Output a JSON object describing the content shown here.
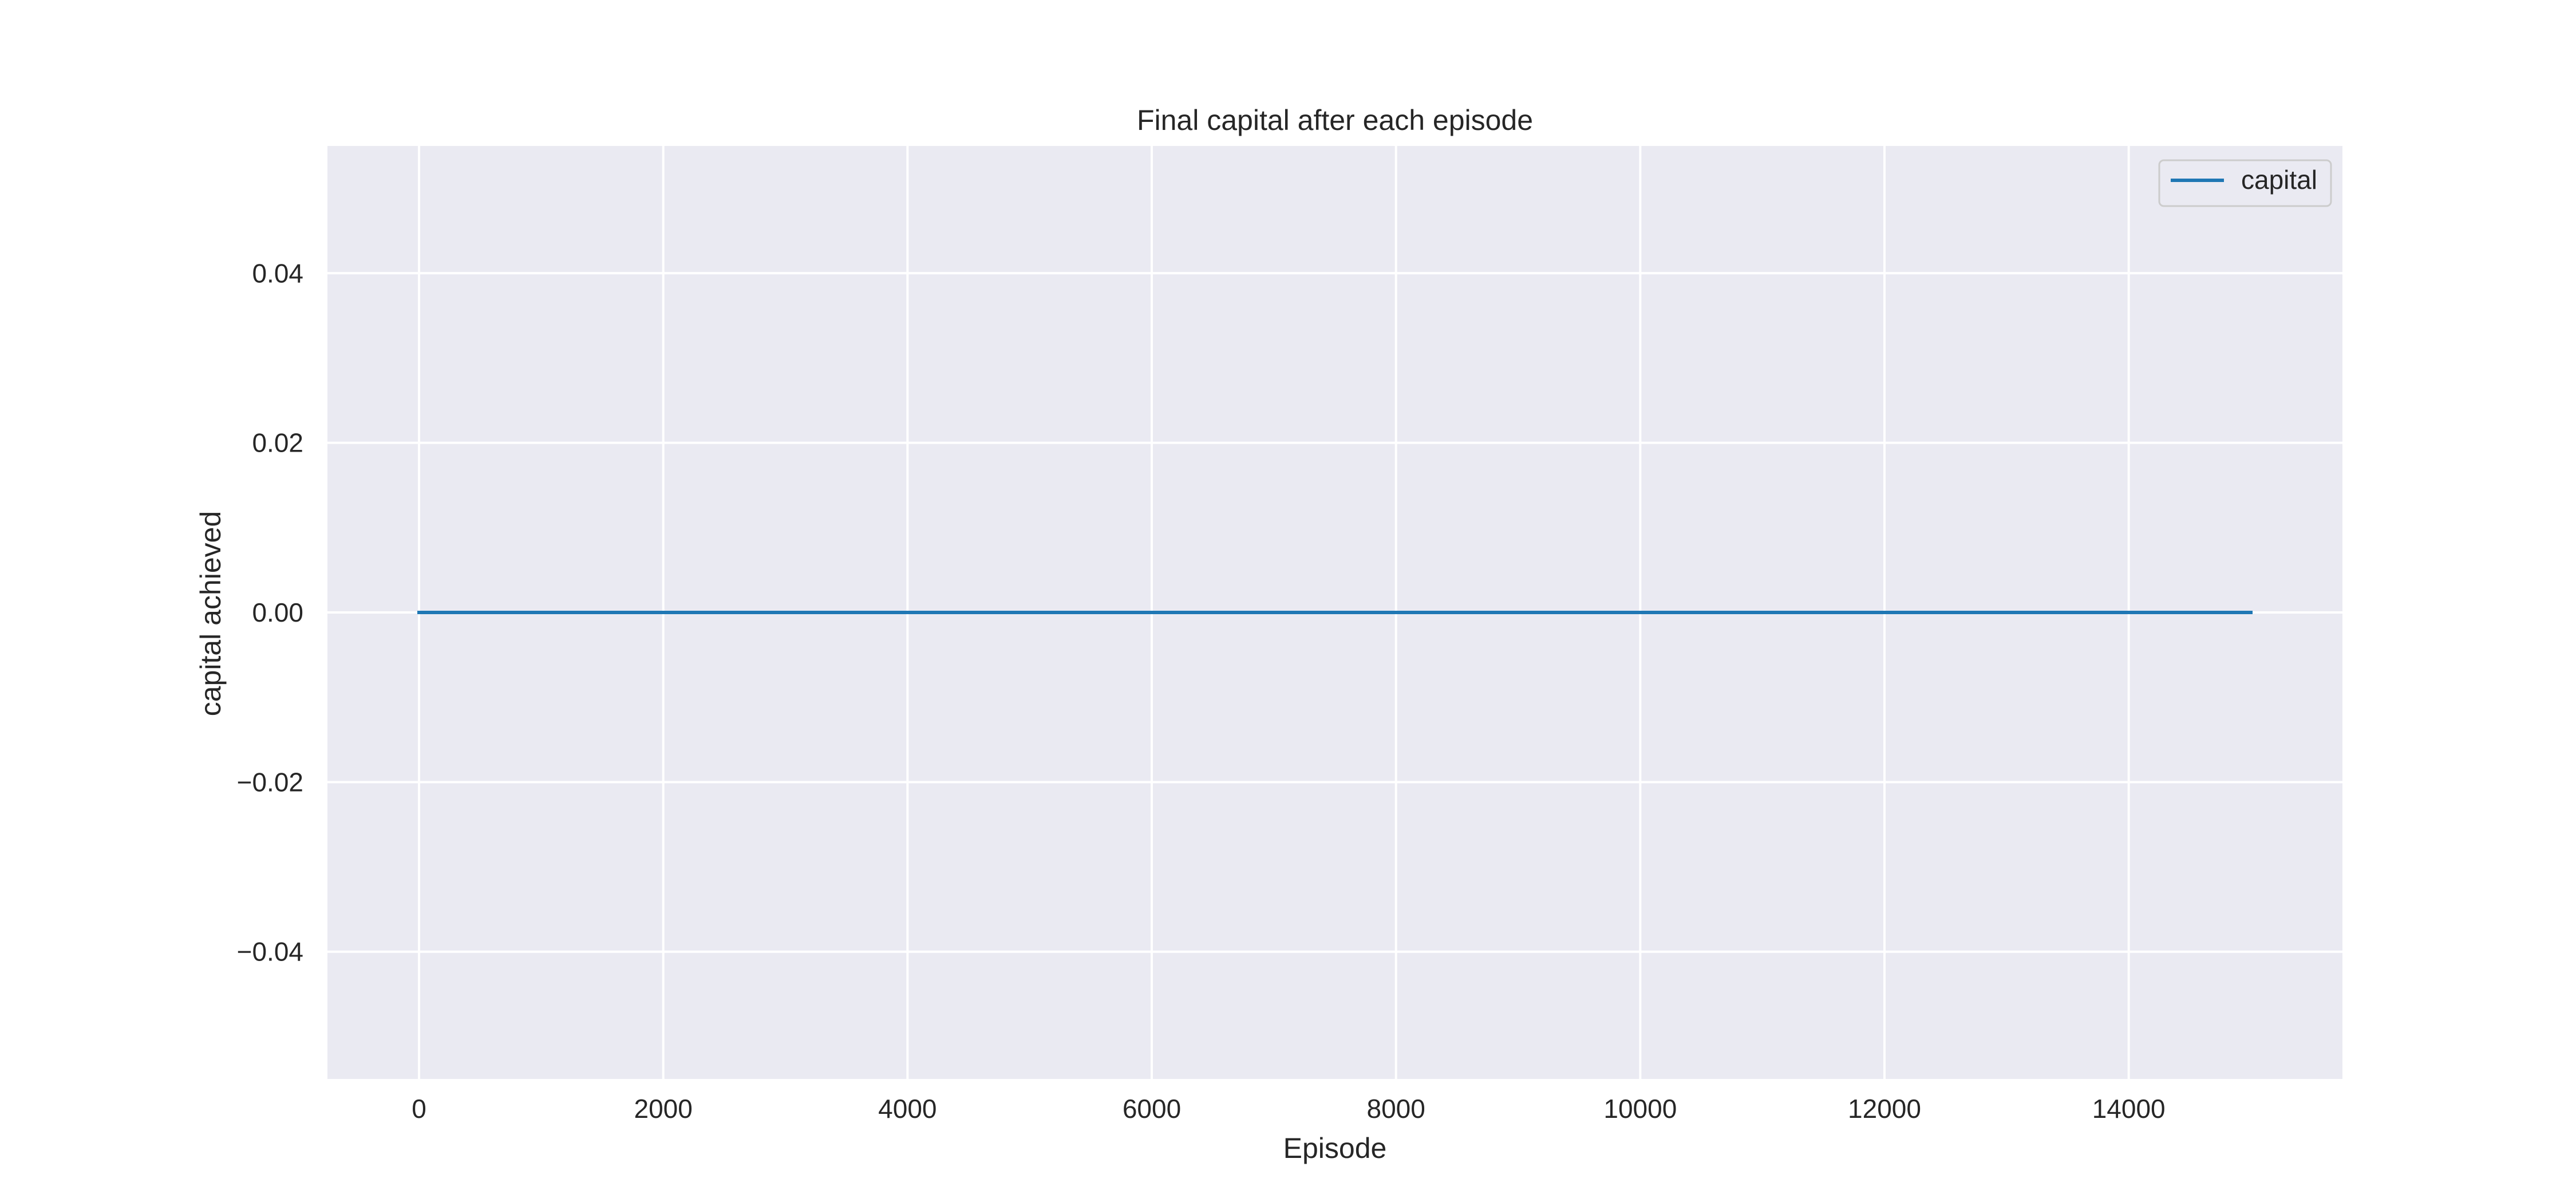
{
  "chart_data": {
    "type": "line",
    "title": "Final capital after each episode",
    "xlabel": "Episode",
    "ylabel": "capital achieved",
    "x_ticks": [
      0,
      2000,
      4000,
      6000,
      8000,
      10000,
      12000,
      14000
    ],
    "x_tick_labels": [
      "0",
      "2000",
      "4000",
      "6000",
      "8000",
      "10000",
      "12000",
      "14000"
    ],
    "y_ticks": [
      0.04,
      0.02,
      0.0,
      -0.02,
      -0.04
    ],
    "y_tick_labels": [
      "0.04",
      "0.02",
      "0.00",
      "−0.02",
      "−0.04"
    ],
    "xlim": [
      -750,
      15750
    ],
    "ylim": [
      -0.055,
      0.055
    ],
    "grid": true,
    "legend": "top-right",
    "series": [
      {
        "name": "capital",
        "color": "#1f77b4",
        "x": [
          0,
          15000
        ],
        "y": [
          0,
          0
        ]
      }
    ],
    "background_color": "#eaeaf2"
  }
}
